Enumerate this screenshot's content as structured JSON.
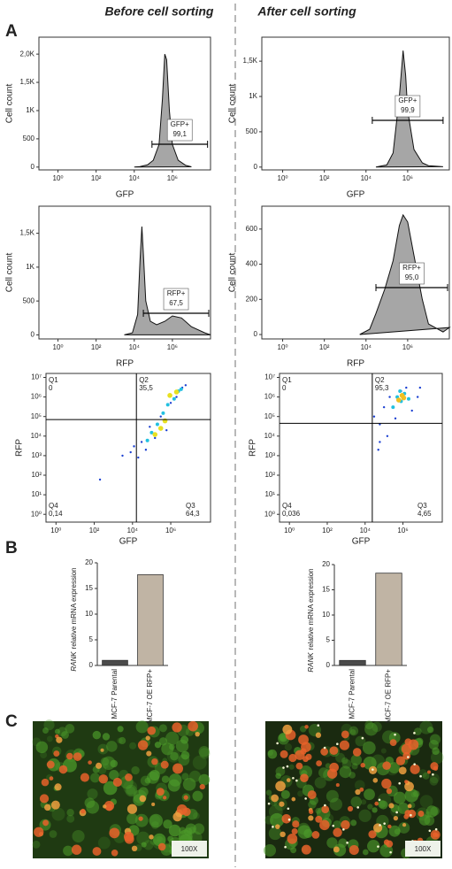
{
  "figure": {
    "columns": [
      "Before cell sorting",
      "After cell sorting"
    ],
    "panels": [
      "A",
      "B",
      "C"
    ],
    "images": [
      {
        "label": "100X"
      },
      {
        "label": "100X"
      }
    ]
  },
  "chart_data": [
    {
      "type": "area",
      "xlabel": "GFP",
      "ylabel": "Cell count",
      "log_x": true,
      "xlim": [
        0.1,
        100000000
      ],
      "xticks": [
        {
          "value": 1,
          "label": "10⁰"
        },
        {
          "value": 100,
          "label": "10²"
        },
        {
          "value": 10000,
          "label": "10⁴"
        },
        {
          "value": 1000000,
          "label": "10⁶"
        }
      ],
      "ylim": [
        -50,
        2300
      ],
      "yticks": [
        0,
        500,
        {
          "value": 1000,
          "label": "1K"
        },
        {
          "value": 1500,
          "label": "1,5K"
        },
        {
          "value": 2000,
          "label": "2,0K"
        }
      ],
      "color": "#a6a6a6",
      "x": [
        10000,
        20000,
        50000,
        100000,
        200000,
        300000,
        400000,
        500000,
        700000,
        1000000,
        2000000,
        5000000,
        10000000
      ],
      "values": [
        0,
        10,
        40,
        120,
        400,
        1200,
        2000,
        1900,
        1000,
        400,
        120,
        30,
        5
      ],
      "gate": {
        "name": "GFP+",
        "label": "99,1",
        "xrange": [
          85000,
          70000000
        ]
      }
    },
    {
      "type": "area",
      "xlabel": "GFP",
      "ylabel": "Cell count",
      "log_x": true,
      "xlim": [
        0.1,
        100000000
      ],
      "xticks": [
        {
          "value": 1,
          "label": "10⁰"
        },
        {
          "value": 100,
          "label": "10²"
        },
        {
          "value": 10000,
          "label": "10⁴"
        },
        {
          "value": 1000000,
          "label": "10⁶"
        }
      ],
      "ylim": [
        -40,
        1840
      ],
      "yticks": [
        0,
        500,
        {
          "value": 1000,
          "label": "1K"
        },
        {
          "value": 1500,
          "label": "1,5K"
        }
      ],
      "color": "#a6a6a6",
      "x": [
        30000,
        100000,
        200000,
        400000,
        600000,
        800000,
        1000000,
        2000000,
        5000000,
        10000000,
        50000000
      ],
      "values": [
        0,
        30,
        200,
        1000,
        1650,
        1300,
        800,
        250,
        60,
        20,
        5
      ],
      "gate": {
        "name": "GFP+",
        "label": "99,9",
        "xrange": [
          20000,
          50000000
        ]
      }
    },
    {
      "type": "area",
      "xlabel": "RFP",
      "ylabel": "Cell count",
      "log_x": true,
      "xlim": [
        0.1,
        100000000
      ],
      "xticks": [
        {
          "value": 1,
          "label": "10⁰"
        },
        {
          "value": 100,
          "label": "10²"
        },
        {
          "value": 10000,
          "label": "10⁴"
        },
        {
          "value": 1000000,
          "label": "10⁶"
        }
      ],
      "ylim": [
        -60,
        1900
      ],
      "yticks": [
        0,
        500,
        {
          "value": 1000,
          "label": "1K"
        },
        {
          "value": 1500,
          "label": "1,5K"
        }
      ],
      "color": "#a6a6a6",
      "x": [
        3000,
        8000,
        15000,
        20000,
        25000,
        30000,
        40000,
        70000,
        150000,
        400000,
        1000000,
        3000000,
        10000000,
        50000000,
        100000000
      ],
      "values": [
        0,
        30,
        300,
        1100,
        1600,
        1200,
        500,
        200,
        150,
        200,
        280,
        250,
        120,
        30,
        0
      ],
      "gate": {
        "name": "RFP+",
        "label": "67,5",
        "xrange": [
          30000,
          100000000
        ]
      }
    },
    {
      "type": "area",
      "xlabel": "RFP",
      "ylabel": "Cell count",
      "log_x": true,
      "xlim": [
        0.1,
        100000000
      ],
      "xticks": [
        {
          "value": 1,
          "label": "10⁰"
        },
        {
          "value": 100,
          "label": "10²"
        },
        {
          "value": 10000,
          "label": "10⁴"
        },
        {
          "value": 1000000,
          "label": "10⁶"
        }
      ],
      "ylim": [
        -25,
        730
      ],
      "yticks": [
        0,
        200,
        400,
        600
      ],
      "color": "#a6a6a6",
      "x": [
        5000,
        15000,
        30000,
        80000,
        200000,
        400000,
        600000,
        1000000,
        2000000,
        5000000,
        10000000,
        50000000,
        100000000
      ],
      "values": [
        0,
        30,
        120,
        260,
        420,
        620,
        680,
        640,
        450,
        200,
        60,
        15,
        40
      ],
      "gate": {
        "name": "RFP+",
        "label": "95,0",
        "xrange": [
          30000,
          100000000
        ]
      }
    },
    {
      "type": "scatter",
      "xlabel": "GFP",
      "ylabel": "RFP",
      "log_x": true,
      "log_y": true,
      "xlim": [
        0.3,
        120000000
      ],
      "ylim": [
        0.4,
        16000000
      ],
      "xticks": [
        {
          "value": 1,
          "label": "10⁰"
        },
        {
          "value": 100,
          "label": "10²"
        },
        {
          "value": 10000,
          "label": "10⁴"
        },
        {
          "value": 1000000,
          "label": "10⁶"
        }
      ],
      "yticks": [
        {
          "value": 1,
          "label": "10⁰"
        },
        {
          "value": 10,
          "label": "10¹"
        },
        {
          "value": 100,
          "label": "10²"
        },
        {
          "value": 1000,
          "label": "10³"
        },
        {
          "value": 10000,
          "label": "10⁴"
        },
        {
          "value": 100000,
          "label": "10⁵"
        },
        {
          "value": 1000000,
          "label": "10⁶"
        },
        {
          "value": 10000000,
          "label": "10⁷"
        }
      ],
      "quadrant_x": 16000,
      "quadrant_y": 70000,
      "quadrants": [
        {
          "name": "Q1",
          "label": "0"
        },
        {
          "name": "Q2",
          "label": "35,5"
        },
        {
          "name": "Q3",
          "label": "64,3"
        },
        {
          "name": "Q4",
          "label": "0,14"
        }
      ],
      "series": [
        {
          "color": "#1a3fd1",
          "x": [
            8000,
            12000,
            20000,
            30000,
            50000,
            80000,
            150000,
            300000,
            600000,
            1000000,
            2000000,
            4000000,
            6000000,
            3000,
            200
          ],
          "values": [
            1500,
            3000,
            800,
            5000,
            2000,
            30000,
            8000,
            100000,
            20000,
            500000,
            1000000,
            3000000,
            4000000,
            1000,
            60
          ]
        },
        {
          "color": "#22c0e0",
          "x": [
            60000,
            100000,
            200000,
            400000,
            700000,
            1500000,
            2500000,
            3500000
          ],
          "values": [
            6000,
            15000,
            40000,
            150000,
            400000,
            800000,
            2000000,
            2500000
          ]
        },
        {
          "color": "#e8e020",
          "x": [
            150000,
            300000,
            500000,
            900000,
            2000000
          ],
          "values": [
            12000,
            25000,
            60000,
            1200000,
            1800000
          ]
        }
      ]
    },
    {
      "type": "scatter",
      "xlabel": "GFP",
      "ylabel": "RFP",
      "log_x": true,
      "log_y": true,
      "xlim": [
        0.3,
        120000000
      ],
      "ylim": [
        0.4,
        16000000
      ],
      "xticks": [
        {
          "value": 1,
          "label": "10⁰"
        },
        {
          "value": 100,
          "label": "10²"
        },
        {
          "value": 10000,
          "label": "10⁴"
        },
        {
          "value": 1000000,
          "label": "10⁶"
        }
      ],
      "yticks": [
        {
          "value": 1,
          "label": "10⁰"
        },
        {
          "value": 10,
          "label": "10¹"
        },
        {
          "value": 100,
          "label": "10²"
        },
        {
          "value": 1000,
          "label": "10³"
        },
        {
          "value": 10000,
          "label": "10⁴"
        },
        {
          "value": 100000,
          "label": "10⁵"
        },
        {
          "value": 1000000,
          "label": "10⁶"
        },
        {
          "value": 10000000,
          "label": "10⁷"
        }
      ],
      "quadrant_x": 24000,
      "quadrant_y": 45000,
      "quadrants": [
        {
          "name": "Q1",
          "label": "0"
        },
        {
          "name": "Q2",
          "label": "95,3"
        },
        {
          "name": "Q3",
          "label": "4,65"
        },
        {
          "name": "Q4",
          "label": "0,036"
        }
      ],
      "series": [
        {
          "color": "#1a3fd1",
          "x": [
            30000,
            60000,
            100000,
            200000,
            400000,
            800000,
            1500000,
            3000000,
            6000000,
            50000,
            150000,
            8000000,
            60000
          ],
          "values": [
            100000,
            40000,
            300000,
            1000000,
            80000,
            2000000,
            3000000,
            200000,
            1000000,
            2000,
            10000,
            3000000,
            5000
          ]
        },
        {
          "color": "#22c0e0",
          "x": [
            300000,
            500000,
            800000,
            1200000,
            2000000,
            700000
          ],
          "values": [
            300000,
            1000000,
            600000,
            1500000,
            800000,
            2000000
          ]
        },
        {
          "color": "#f0c020",
          "x": [
            600000,
            900000,
            1100000
          ],
          "values": [
            700000,
            1200000,
            900000
          ]
        }
      ]
    },
    {
      "type": "bar",
      "ylabel_italic": "RANK",
      "ylabel": "relative mRNA expression",
      "categories": [
        "MCF-7 Parental",
        "MCF-7 OE RFP+"
      ],
      "values": [
        1,
        17.7
      ],
      "colors": [
        "#4a4a4a",
        "#c0b4a4"
      ],
      "ylim": [
        0,
        20
      ],
      "yticks": [
        0,
        5,
        10,
        15,
        20
      ]
    },
    {
      "type": "bar",
      "ylabel_italic": "RANK",
      "ylabel": "relative mRNA expression",
      "categories": [
        "MCF-7 Parental",
        "MCF-7 OE RFP+"
      ],
      "values": [
        1,
        18.3
      ],
      "colors": [
        "#4a4a4a",
        "#c0b4a4"
      ],
      "ylim": [
        0,
        20
      ],
      "yticks": [
        0,
        5,
        10,
        15,
        20
      ]
    }
  ]
}
